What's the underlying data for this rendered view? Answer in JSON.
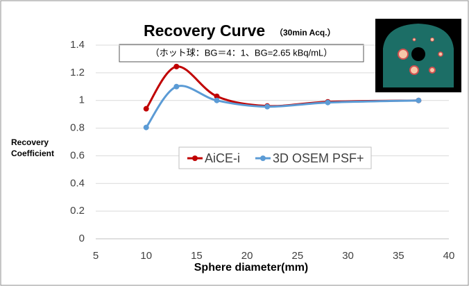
{
  "chart_data": {
    "type": "line",
    "title": "Recovery Curve",
    "subtitle": "（30min Acq.）",
    "annotation": "（ホット球：BG＝4：1、BG=2.65 kBq/mL）",
    "x_label": "Sphere diameter(mm)",
    "y_label": [
      "Recovery",
      "Coefficient"
    ],
    "x": [
      10,
      13,
      17,
      22,
      28,
      37
    ],
    "series": [
      {
        "name": "AiCE-i",
        "color": "#c00000",
        "values": [
          0.94,
          1.245,
          1.03,
          0.96,
          0.99,
          1.0
        ]
      },
      {
        "name": "3D OSEM PSF+",
        "color": "#5b9bd5",
        "values": [
          0.805,
          1.1,
          1.0,
          0.955,
          0.985,
          1.0
        ]
      }
    ],
    "xlim": [
      5,
      40
    ],
    "xticks": [
      5,
      10,
      15,
      20,
      25,
      30,
      35,
      40
    ],
    "ylim": [
      0,
      1.4
    ],
    "yticks": [
      0,
      0.2,
      0.4,
      0.6,
      0.8,
      1,
      1.2,
      1.4
    ],
    "grid": true
  }
}
